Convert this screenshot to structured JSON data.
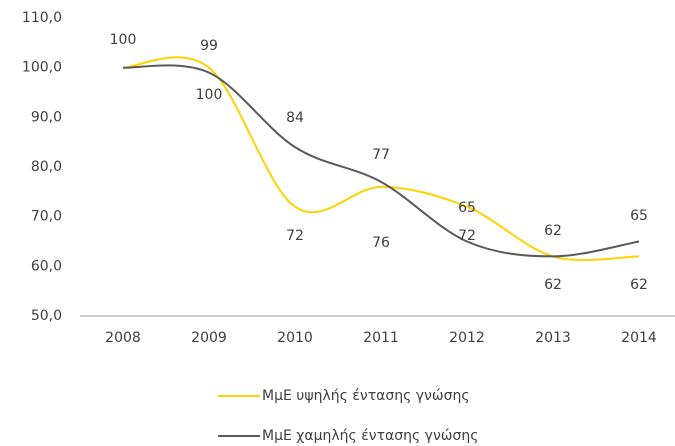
{
  "chart_data": {
    "type": "line",
    "categories": [
      "2008",
      "2009",
      "2010",
      "2011",
      "2012",
      "2013",
      "2014"
    ],
    "series": [
      {
        "name": "ΜμΕ υψηλής έντασης γνώσης",
        "color": "#ffd200",
        "values": [
          100,
          100,
          72,
          76,
          72,
          62,
          62
        ]
      },
      {
        "name": "ΜμΕ χαμηλής έντασης γνώσης",
        "color": "#5a5a5a",
        "values": [
          100,
          99,
          84,
          77,
          65,
          62,
          65
        ]
      }
    ],
    "ylim": [
      50,
      110
    ],
    "yticks": [
      {
        "value": 50,
        "label": "50,0"
      },
      {
        "value": 60,
        "label": "60,0"
      },
      {
        "value": 70,
        "label": "70,0"
      },
      {
        "value": 80,
        "label": "80,0"
      },
      {
        "value": 90,
        "label": "90,0"
      },
      {
        "value": 100,
        "label": "100,0"
      },
      {
        "value": 110,
        "label": "110,0"
      }
    ],
    "legend": "bottom"
  }
}
